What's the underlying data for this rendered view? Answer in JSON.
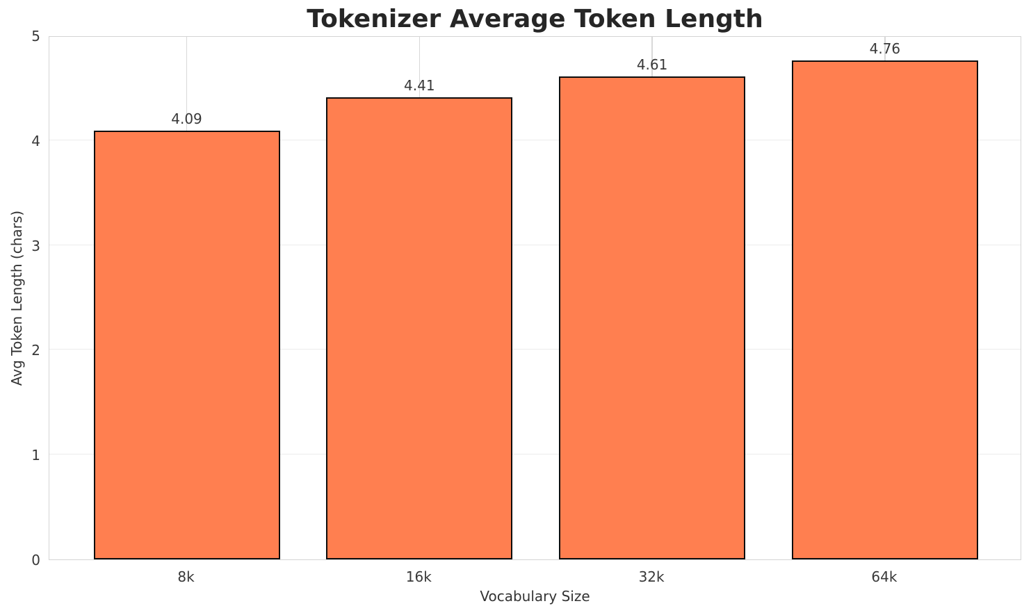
{
  "chart_data": {
    "type": "bar",
    "title": "Tokenizer Average Token Length",
    "xlabel": "Vocabulary Size",
    "ylabel": "Avg Token Length (chars)",
    "categories": [
      "8k",
      "16k",
      "32k",
      "64k"
    ],
    "values": [
      4.09,
      4.41,
      4.61,
      4.76
    ],
    "value_labels": [
      "4.09",
      "4.41",
      "4.61",
      "4.76"
    ],
    "ylim": [
      0,
      5
    ],
    "ytick_labels": [
      "0",
      "1",
      "2",
      "3",
      "4",
      "5"
    ],
    "grid": "horizontal lines at integer y values, vertical lines at bar centers, drawn behind bars",
    "legend": "none",
    "colors": {
      "bar_fill": "#FF7F50",
      "bar_edge": "#0d0d0d",
      "title_text": "#262626",
      "tick_text": "#383838",
      "axis_label_text": "#333333",
      "gridline_horizontal": "#ececec",
      "gridline_vertical": "#d8d8d8",
      "spine": "#d4d4d4",
      "background": "#ffffff"
    }
  }
}
